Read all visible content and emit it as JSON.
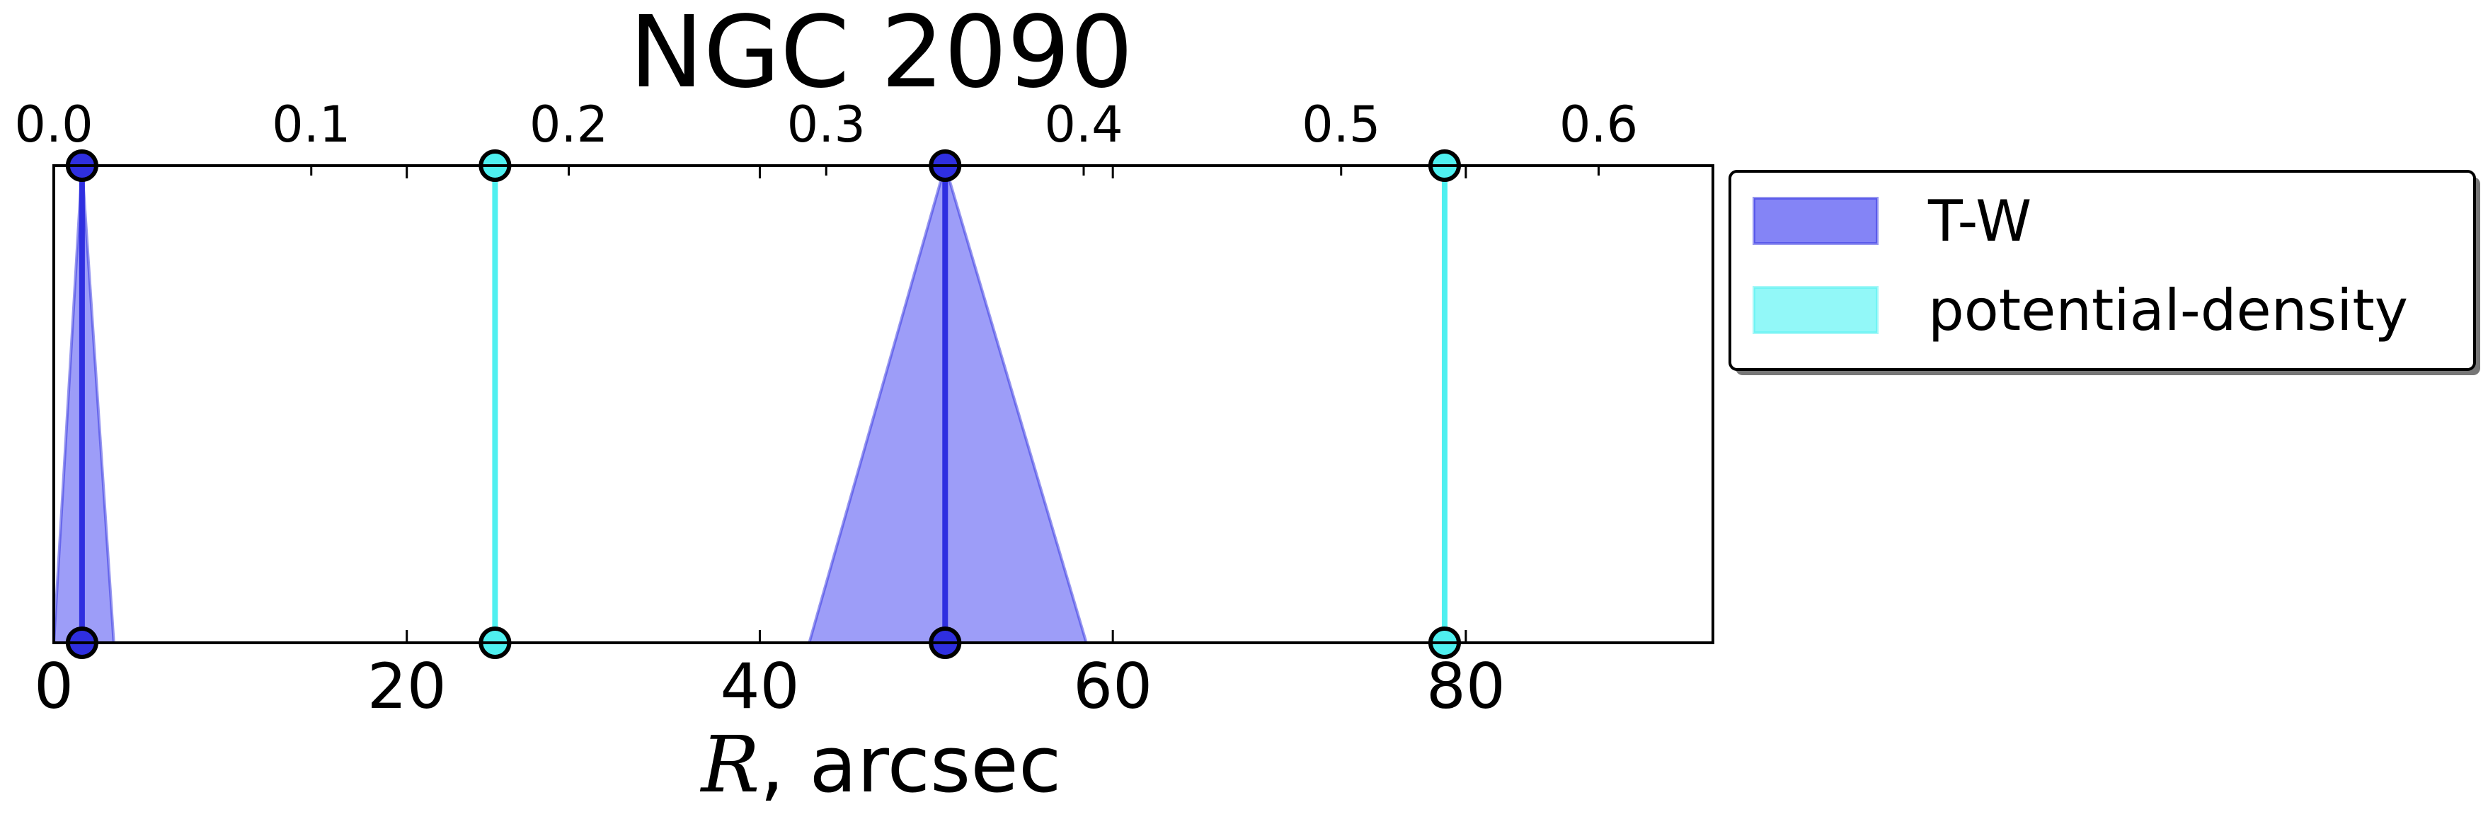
{
  "chart_data": {
    "type": "line",
    "title": "NGC 2090",
    "xlabel_math": "R",
    "xlabel_rest": ", arcsec",
    "xlim": [
      0,
      94
    ],
    "bottom_ticks": [
      "0",
      "20",
      "40",
      "60",
      "80"
    ],
    "bottom_tick_values": [
      0,
      20,
      40,
      60,
      80
    ],
    "top_xlim": [
      0,
      0.6444
    ],
    "top_ticks": [
      "0.0",
      "0.1",
      "0.2",
      "0.3",
      "0.4",
      "0.5",
      "0.6"
    ],
    "top_tick_values": [
      0.0,
      0.1,
      0.2,
      0.3,
      0.4,
      0.5,
      0.6
    ],
    "grid": false,
    "legend_position": "outside-right-top",
    "series": [
      {
        "name": "T-W",
        "color": "#2f2fe0",
        "fill_color": "#6f6ff5",
        "markers": [
          1.6,
          50.5
        ],
        "triangles": [
          {
            "center": 1.6,
            "left": 0.0,
            "right": 3.4
          },
          {
            "center": 50.5,
            "left": 42.8,
            "right": 58.5
          }
        ]
      },
      {
        "name": "potential-density",
        "color": "#4ff0f0",
        "fill_color": "#7ff7f7",
        "markers": [
          25.0,
          78.8
        ],
        "triangles": []
      }
    ]
  }
}
